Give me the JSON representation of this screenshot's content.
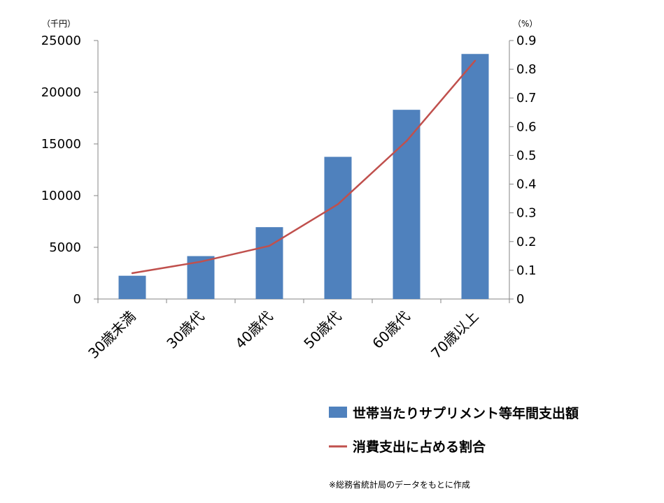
{
  "chart_data": {
    "type": "bar",
    "categories": [
      "30歳未満",
      "30歳代",
      "40歳代",
      "50歳代",
      "60歳代",
      "70歳以上"
    ],
    "series": [
      {
        "name": "世帯当たりサプリメント等年間支出額",
        "type": "bar",
        "axis": "left",
        "color": "#4F81BD",
        "values": [
          2250,
          4150,
          6950,
          13750,
          18300,
          23700
        ]
      },
      {
        "name": "消費支出に占める割合",
        "type": "line",
        "axis": "right",
        "color": "#C0504D",
        "values": [
          0.09,
          0.13,
          0.185,
          0.33,
          0.55,
          0.83
        ]
      }
    ],
    "y_left": {
      "unit": "（千円）",
      "ylim": [
        0,
        25000
      ],
      "ticks": [
        "0",
        "5000",
        "10000",
        "15000",
        "20000",
        "25000"
      ]
    },
    "y_right": {
      "unit": "（%）",
      "ylim": [
        0,
        0.9
      ],
      "ticks": [
        "0",
        "0.1",
        "0.2",
        "0.3",
        "0.4",
        "0.5",
        "0.6",
        "0.7",
        "0.8",
        "0.9"
      ]
    },
    "grid": false,
    "legend_position": "bottom-right",
    "note": "※総務省統計局のデータをもとに作成"
  }
}
